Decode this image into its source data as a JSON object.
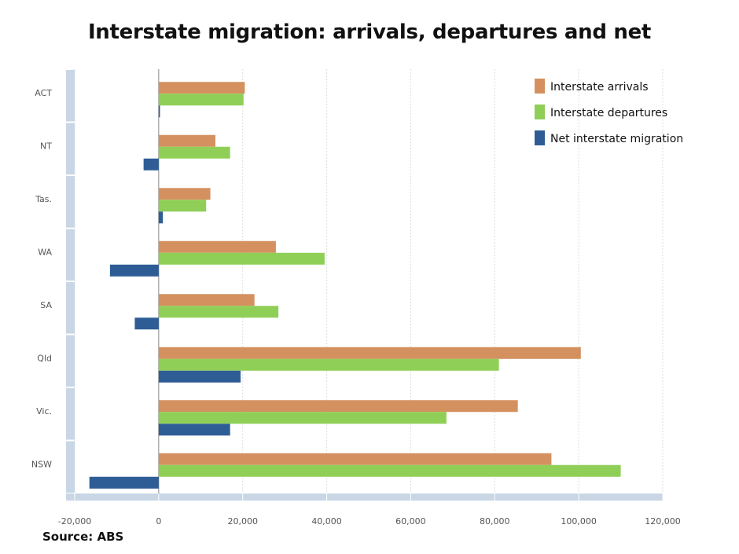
{
  "chart_data": {
    "type": "bar",
    "orientation": "horizontal",
    "title": "Interstate migration: arrivals, departures and net",
    "source": "Source: ABS",
    "categories": [
      "ACT",
      "NT",
      "Tas.",
      "WA",
      "SA",
      "Qld",
      "Vic.",
      "NSW"
    ],
    "series": [
      {
        "name": "Interstate arrivals",
        "color": "#d4915f",
        "values": [
          20500,
          13500,
          12300,
          27900,
          22800,
          100500,
          85500,
          93500
        ]
      },
      {
        "name": "Interstate departures",
        "color": "#8fcf57",
        "values": [
          20200,
          17000,
          11300,
          39500,
          28500,
          81000,
          68500,
          110000
        ]
      },
      {
        "name": "Net interstate migration",
        "color": "#2e5d96",
        "values": [
          300,
          -3600,
          1000,
          -11600,
          -5700,
          19500,
          17000,
          -16500
        ]
      }
    ],
    "xlim": [
      -20000,
      120000
    ],
    "xticks": [
      -20000,
      0,
      20000,
      40000,
      60000,
      80000,
      100000,
      120000
    ],
    "xtick_labels": [
      "-20,000",
      "0",
      "20,000",
      "40,000",
      "60,000",
      "80,000",
      "100,000",
      "120,000"
    ],
    "grid": true,
    "legend_position": "top-right"
  }
}
